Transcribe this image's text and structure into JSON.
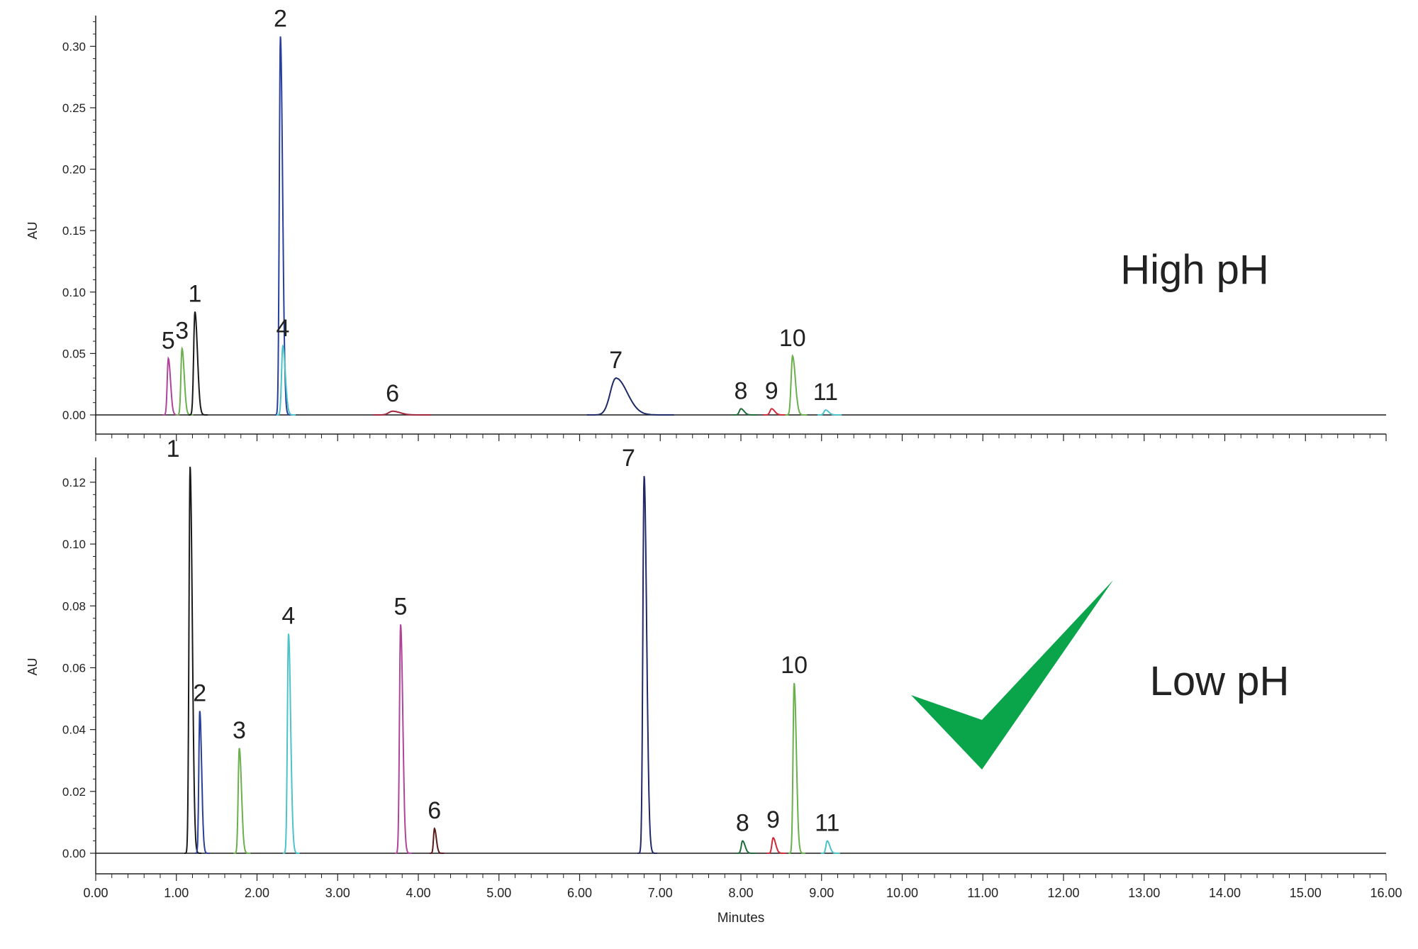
{
  "chart_data": [
    {
      "type": "line",
      "panel": "top",
      "ylabel": "AU",
      "ylim": [
        -0.005,
        0.325
      ],
      "yticks": [
        "0.00",
        "0.05",
        "0.10",
        "0.15",
        "0.20",
        "0.25",
        "0.30"
      ],
      "xlim": [
        0.0,
        16.0
      ],
      "annotation": "High pH",
      "peaks": [
        {
          "label": "5",
          "x": 0.9,
          "y": 0.046,
          "w": 0.035,
          "color": "#b0449a"
        },
        {
          "label": "3",
          "x": 1.07,
          "y": 0.054,
          "w": 0.035,
          "color": "#6ab04c"
        },
        {
          "label": "1",
          "x": 1.23,
          "y": 0.084,
          "w": 0.04,
          "color": "#1a1a1a"
        },
        {
          "label": "2",
          "x": 2.29,
          "y": 0.308,
          "w": 0.035,
          "color": "#2a3f9a"
        },
        {
          "label": "4",
          "x": 2.32,
          "y": 0.056,
          "w": 0.04,
          "color": "#4cc3c9"
        },
        {
          "label": "6",
          "x": 3.68,
          "y": 0.003,
          "w": 0.12,
          "color": "#a0283c"
        },
        {
          "label": "7",
          "x": 6.45,
          "y": 0.03,
          "w": 0.18,
          "color": "#1f2a66"
        },
        {
          "label": "8",
          "x": 8.0,
          "y": 0.005,
          "w": 0.05,
          "color": "#1f6b3a"
        },
        {
          "label": "9",
          "x": 8.38,
          "y": 0.005,
          "w": 0.05,
          "color": "#d0293a"
        },
        {
          "label": "10",
          "x": 8.64,
          "y": 0.048,
          "w": 0.045,
          "color": "#6ab04c"
        },
        {
          "label": "11",
          "x": 9.05,
          "y": 0.004,
          "w": 0.05,
          "color": "#4cc3c9"
        }
      ]
    },
    {
      "type": "line",
      "panel": "bottom",
      "ylabel": "AU",
      "ylim": [
        -0.006,
        0.128
      ],
      "yticks": [
        "0.00",
        "0.02",
        "0.04",
        "0.06",
        "0.08",
        "0.10",
        "0.12"
      ],
      "xlim": [
        0.0,
        16.0
      ],
      "xlabel": "Minutes",
      "xticks": [
        "0.00",
        "1.00",
        "2.00",
        "3.00",
        "4.00",
        "5.00",
        "6.00",
        "7.00",
        "8.00",
        "9.00",
        "10.00",
        "11.00",
        "12.00",
        "13.00",
        "14.00",
        "15.00",
        "16.00"
      ],
      "annotation": "Low pH",
      "peaks": [
        {
          "label": "1",
          "x": 1.17,
          "y": 0.125,
          "w": 0.035,
          "color": "#1a1a1a"
        },
        {
          "label": "2",
          "x": 1.29,
          "y": 0.046,
          "w": 0.03,
          "color": "#2a3f9a"
        },
        {
          "label": "3",
          "x": 1.78,
          "y": 0.034,
          "w": 0.035,
          "color": "#6ab04c"
        },
        {
          "label": "4",
          "x": 2.39,
          "y": 0.071,
          "w": 0.035,
          "color": "#4cc3c9"
        },
        {
          "label": "5",
          "x": 3.78,
          "y": 0.074,
          "w": 0.035,
          "color": "#b0449a"
        },
        {
          "label": "6",
          "x": 4.2,
          "y": 0.008,
          "w": 0.03,
          "color": "#5a1a1a"
        },
        {
          "label": "7",
          "x": 6.8,
          "y": 0.122,
          "w": 0.04,
          "color": "#1f2a66"
        },
        {
          "label": "8",
          "x": 8.02,
          "y": 0.004,
          "w": 0.04,
          "color": "#1f6b3a"
        },
        {
          "label": "9",
          "x": 8.4,
          "y": 0.005,
          "w": 0.04,
          "color": "#d0293a"
        },
        {
          "label": "10",
          "x": 8.66,
          "y": 0.055,
          "w": 0.035,
          "color": "#6ab04c"
        },
        {
          "label": "11",
          "x": 9.07,
          "y": 0.004,
          "w": 0.04,
          "color": "#4cc3c9"
        }
      ]
    }
  ],
  "checkmark": {
    "icon": "checkmark-icon",
    "color": "#0aa44a"
  }
}
